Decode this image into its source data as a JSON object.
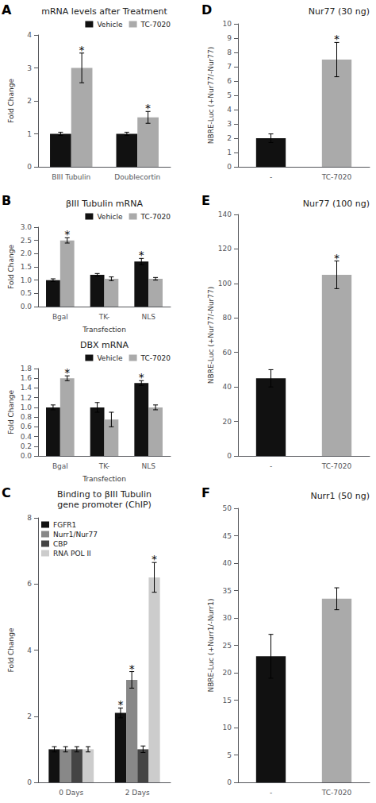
{
  "chart_data": [
    {
      "type": "bar",
      "title": "mRNA levels after Treatment",
      "categories": [
        "BIII Tubulin",
        "Doublecortin"
      ],
      "series": [
        {
          "name": "Vehicle",
          "color": "#111111",
          "values": [
            1.0,
            1.0
          ],
          "errors": [
            0.05,
            0.05
          ]
        },
        {
          "name": "TC-7020",
          "color": "#aaaaaa",
          "values": [
            3.0,
            1.5
          ],
          "errors": [
            0.45,
            0.18
          ]
        }
      ],
      "ylim": [
        0,
        4
      ],
      "yticks": [
        0,
        1,
        2,
        3,
        4
      ],
      "ylabel": "Fold Change",
      "grid": false,
      "legend": "upper right",
      "annotations": [
        {
          "text": "A"
        },
        {
          "text": "*",
          "category": "BIII Tubulin",
          "series": "TC-7020"
        },
        {
          "text": "*",
          "category": "Doublecortin",
          "series": "TC-7020"
        }
      ]
    },
    {
      "type": "bar",
      "title": "βIII Tubulin mRNA",
      "categories": [
        "Bgal",
        "TK-",
        "NLS"
      ],
      "series": [
        {
          "name": "Vehicle",
          "color": "#111111",
          "values": [
            1.0,
            1.2,
            1.7
          ],
          "errors": [
            0.05,
            0.05,
            0.12
          ]
        },
        {
          "name": "TC-7020",
          "color": "#aaaaaa",
          "values": [
            2.5,
            1.05,
            1.05
          ],
          "errors": [
            0.1,
            0.07,
            0.05
          ]
        }
      ],
      "ylim": [
        0.0,
        3.0
      ],
      "yticks": [
        {
          "value": 0.0,
          "label": "0.0"
        },
        0.5,
        {
          "value": 1.0,
          "label": "1.0"
        },
        1.5,
        {
          "value": 2.0,
          "label": "2.0"
        },
        2.5,
        {
          "value": 3.0,
          "label": "3.0"
        }
      ],
      "ylabel": "Fold Change",
      "xlabel": "Transfection",
      "grid": false,
      "legend": "upper right",
      "annotations": [
        {
          "text": "B"
        },
        {
          "text": "*",
          "category": "Bgal",
          "series": "TC-7020"
        },
        {
          "text": "*",
          "category": "NLS",
          "series": "Vehicle"
        }
      ]
    },
    {
      "type": "bar",
      "title": "DBX mRNA",
      "categories": [
        "Bgal",
        "TK-",
        "NLS"
      ],
      "series": [
        {
          "name": "Vehicle",
          "color": "#111111",
          "values": [
            1.0,
            1.0,
            1.5
          ],
          "errors": [
            0.05,
            0.1,
            0.05
          ]
        },
        {
          "name": "TC-7020",
          "color": "#aaaaaa",
          "values": [
            1.6,
            0.75,
            1.0
          ],
          "errors": [
            0.05,
            0.15,
            0.05
          ]
        }
      ],
      "ylim": [
        0.0,
        1.8
      ],
      "yticks": [
        {
          "value": 0.0,
          "label": "0.0"
        },
        0.2,
        0.4,
        0.6,
        0.8,
        {
          "value": 1.0,
          "label": "1.0"
        },
        1.2,
        1.4,
        1.6,
        1.8
      ],
      "ylabel": "Fold Change",
      "xlabel": "Transfection",
      "grid": false,
      "legend": "upper right",
      "annotations": [
        {
          "text": "*",
          "category": "Bgal",
          "series": "TC-7020"
        },
        {
          "text": "*",
          "category": "NLS",
          "series": "Vehicle"
        }
      ]
    },
    {
      "type": "bar",
      "title": "Binding to βIII Tubulin\ngene promoter (ChIP)",
      "categories": [
        "0 Days",
        "2 Days"
      ],
      "series": [
        {
          "name": "FGFR1",
          "color": "#111111",
          "values": [
            1.0,
            2.1
          ],
          "errors": [
            0.08,
            0.15
          ]
        },
        {
          "name": "Nurr1/Nur77",
          "color": "#888888",
          "values": [
            1.0,
            3.1
          ],
          "errors": [
            0.08,
            0.25
          ]
        },
        {
          "name": "CBP",
          "color": "#444444",
          "values": [
            1.0,
            1.0
          ],
          "errors": [
            0.08,
            0.1
          ]
        },
        {
          "name": "RNA POL II",
          "color": "#cccccc",
          "values": [
            1.0,
            6.2
          ],
          "errors": [
            0.08,
            0.45
          ]
        }
      ],
      "ylim": [
        0,
        8
      ],
      "yticks": [
        0,
        2,
        4,
        6,
        8
      ],
      "ylabel": "Fold Change",
      "grid": false,
      "legend": "upper left",
      "annotations": [
        {
          "text": "C"
        },
        {
          "text": "*",
          "category": "2 Days",
          "series": "FGFR1"
        },
        {
          "text": "*",
          "category": "2 Days",
          "series": "Nurr1/Nur77"
        },
        {
          "text": "*",
          "category": "2 Days",
          "series": "RNA POL II"
        }
      ]
    },
    {
      "type": "bar",
      "title": "Nur77 (30 ng)",
      "categories": [
        "-",
        "TC-7020"
      ],
      "values": [
        2.0,
        7.5
      ],
      "errors": [
        0.3,
        1.2
      ],
      "colors": [
        "#111111",
        "#aaaaaa"
      ],
      "ylim": [
        0,
        10
      ],
      "yticks": [
        0,
        1,
        2,
        3,
        4,
        5,
        6,
        7,
        8,
        9,
        10
      ],
      "ylabel": "NBRE-Luc (+Nur77/-Nur77)",
      "grid": false,
      "annotations": [
        {
          "text": "D"
        },
        {
          "text": "*",
          "category": "TC-7020"
        }
      ]
    },
    {
      "type": "bar",
      "title": "Nur77 (100 ng)",
      "categories": [
        "-",
        "TC-7020"
      ],
      "values": [
        45.0,
        105.0
      ],
      "errors": [
        5.0,
        8.0
      ],
      "colors": [
        "#111111",
        "#aaaaaa"
      ],
      "ylim": [
        0,
        140
      ],
      "yticks": [
        0,
        20,
        40,
        60,
        80,
        100,
        120,
        140
      ],
      "ylabel": "NBRE-Luc (+Nur77/-Nur77)",
      "grid": false,
      "annotations": [
        {
          "text": "E"
        },
        {
          "text": "*",
          "category": "TC-7020"
        }
      ]
    },
    {
      "type": "bar",
      "title": "Nurr1 (50 ng)",
      "categories": [
        "-",
        "TC-7020"
      ],
      "values": [
        23.0,
        33.5
      ],
      "errors": [
        4.0,
        2.0
      ],
      "colors": [
        "#111111",
        "#aaaaaa"
      ],
      "ylim": [
        0,
        50
      ],
      "yticks": [
        0,
        5,
        10,
        15,
        20,
        25,
        30,
        35,
        40,
        45,
        50
      ],
      "ylabel": "NBRE-Luc (+Nurr1/-Nurr1)",
      "grid": false,
      "annotations": [
        {
          "text": "F"
        }
      ]
    }
  ]
}
